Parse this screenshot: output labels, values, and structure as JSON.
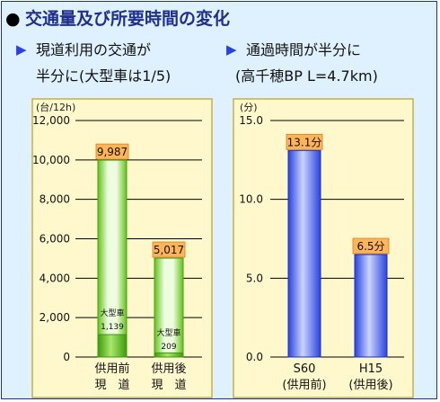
{
  "header": {
    "bullet": "●",
    "title": "交通量及び所要時間の変化"
  },
  "left_section": {
    "marker": "▶",
    "caption_line1": "現道利用の交通が",
    "caption_line2": "半分に(大型車は1/5)"
  },
  "right_section": {
    "marker": "▶",
    "caption_line1": "通過時間が半分に",
    "caption_line2": "(高千穂BP L=4.7km)"
  },
  "colors": {
    "panel_bg": "#dff0ff",
    "chart_bg": "#fff8cc",
    "chart_border": "#c8b040",
    "bar_green_light": "#eefde0",
    "bar_green_dark": "#62c21a",
    "bar_blue_light": "#cad4ff",
    "bar_blue_dark": "#2a43e0",
    "label_box": "#ffb45a",
    "title_text": "#1f2f8a"
  },
  "chart_data": [
    {
      "type": "bar",
      "ylabel": "(台/12h)",
      "ylim": [
        0,
        12000
      ],
      "yticks": [
        0,
        2000,
        4000,
        6000,
        8000,
        10000,
        12000
      ],
      "ytick_labels": [
        "0",
        "2,000",
        "4,000",
        "6,000",
        "8,000",
        "10,000",
        "12,000"
      ],
      "grid": true,
      "categories": [
        {
          "line1": "供用前",
          "line2": "現　道"
        },
        {
          "line1": "供用後",
          "line2": "現　道"
        }
      ],
      "series": [
        {
          "values": [
            9987,
            5017
          ]
        },
        {
          "name": "大型車",
          "values": [
            1139,
            209
          ]
        }
      ],
      "value_labels": [
        "9,987",
        "5,017"
      ],
      "sub_labels": [
        "1,139",
        "209"
      ]
    },
    {
      "type": "bar",
      "ylabel": "(分)",
      "ylim": [
        0,
        15
      ],
      "yticks": [
        0,
        5,
        10,
        15
      ],
      "ytick_labels": [
        "0.0",
        "5.0",
        "10.0",
        "15.0"
      ],
      "grid": true,
      "categories": [
        {
          "line1": "S60",
          "line2": "(供用前)"
        },
        {
          "line1": "H15",
          "line2": "(供用後)"
        }
      ],
      "series": [
        {
          "values": [
            13.1,
            6.5
          ]
        }
      ],
      "value_labels": [
        "13.1分",
        "6.5分"
      ]
    }
  ]
}
